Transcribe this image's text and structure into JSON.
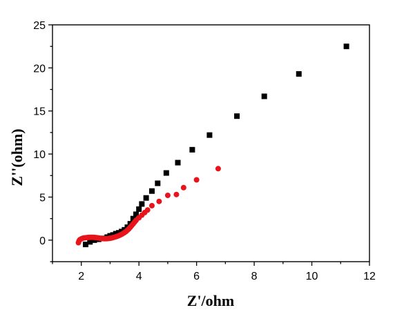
{
  "chart_data": {
    "type": "scatter",
    "title": "",
    "xlabel": "Z'/ohm",
    "ylabel": "Z''(ohm)",
    "xlim": [
      1,
      12
    ],
    "ylim": [
      -2.5,
      25
    ],
    "x_ticks": [
      2,
      4,
      6,
      8,
      10,
      12
    ],
    "y_ticks": [
      0,
      5,
      10,
      15,
      20,
      25
    ],
    "grid": false,
    "legend": "none",
    "series": [
      {
        "marker": "square",
        "color": "#000000",
        "points": [
          [
            2.15,
            -0.5
          ],
          [
            2.3,
            -0.2
          ],
          [
            2.45,
            0.0
          ],
          [
            2.6,
            0.1
          ],
          [
            2.75,
            0.2
          ],
          [
            2.9,
            0.35
          ],
          [
            3.0,
            0.5
          ],
          [
            3.1,
            0.6
          ],
          [
            3.2,
            0.75
          ],
          [
            3.3,
            0.85
          ],
          [
            3.4,
            1.0
          ],
          [
            3.5,
            1.2
          ],
          [
            3.6,
            1.5
          ],
          [
            3.7,
            1.9
          ],
          [
            3.8,
            2.5
          ],
          [
            3.9,
            3.0
          ],
          [
            4.0,
            3.6
          ],
          [
            4.1,
            4.2
          ],
          [
            4.25,
            4.9
          ],
          [
            4.45,
            5.7
          ],
          [
            4.65,
            6.6
          ],
          [
            4.95,
            7.8
          ],
          [
            5.35,
            9.0
          ],
          [
            5.85,
            10.5
          ],
          [
            6.45,
            12.2
          ],
          [
            7.4,
            14.4
          ],
          [
            8.35,
            16.7
          ],
          [
            9.55,
            19.3
          ],
          [
            11.2,
            22.5
          ]
        ]
      },
      {
        "marker": "circle",
        "color": "#e8141b",
        "points": [
          [
            1.9,
            -0.3
          ],
          [
            1.92,
            -0.1
          ],
          [
            1.95,
            0.05
          ],
          [
            2.0,
            0.15
          ],
          [
            2.05,
            0.22
          ],
          [
            2.1,
            0.26
          ],
          [
            2.15,
            0.28
          ],
          [
            2.2,
            0.3
          ],
          [
            2.25,
            0.32
          ],
          [
            2.3,
            0.33
          ],
          [
            2.35,
            0.33
          ],
          [
            2.4,
            0.33
          ],
          [
            2.45,
            0.32
          ],
          [
            2.5,
            0.3
          ],
          [
            2.55,
            0.28
          ],
          [
            2.6,
            0.25
          ],
          [
            2.65,
            0.22
          ],
          [
            2.7,
            0.2
          ],
          [
            2.75,
            0.18
          ],
          [
            2.8,
            0.17
          ],
          [
            2.85,
            0.17
          ],
          [
            2.9,
            0.18
          ],
          [
            2.95,
            0.2
          ],
          [
            3.0,
            0.22
          ],
          [
            3.05,
            0.25
          ],
          [
            3.1,
            0.3
          ],
          [
            3.15,
            0.35
          ],
          [
            3.2,
            0.4
          ],
          [
            3.25,
            0.45
          ],
          [
            3.3,
            0.52
          ],
          [
            3.35,
            0.6
          ],
          [
            3.4,
            0.68
          ],
          [
            3.45,
            0.78
          ],
          [
            3.5,
            0.88
          ],
          [
            3.55,
            1.0
          ],
          [
            3.6,
            1.15
          ],
          [
            3.65,
            1.3
          ],
          [
            3.7,
            1.5
          ],
          [
            3.75,
            1.7
          ],
          [
            3.8,
            1.9
          ],
          [
            3.85,
            2.1
          ],
          [
            3.9,
            2.3
          ],
          [
            4.0,
            2.6
          ],
          [
            4.1,
            2.9
          ],
          [
            4.2,
            3.2
          ],
          [
            4.3,
            3.5
          ],
          [
            4.45,
            4.0
          ],
          [
            4.7,
            4.5
          ],
          [
            5.0,
            5.2
          ],
          [
            5.3,
            5.3
          ],
          [
            5.55,
            6.1
          ],
          [
            6.0,
            7.0
          ],
          [
            6.75,
            8.3
          ]
        ]
      }
    ]
  }
}
